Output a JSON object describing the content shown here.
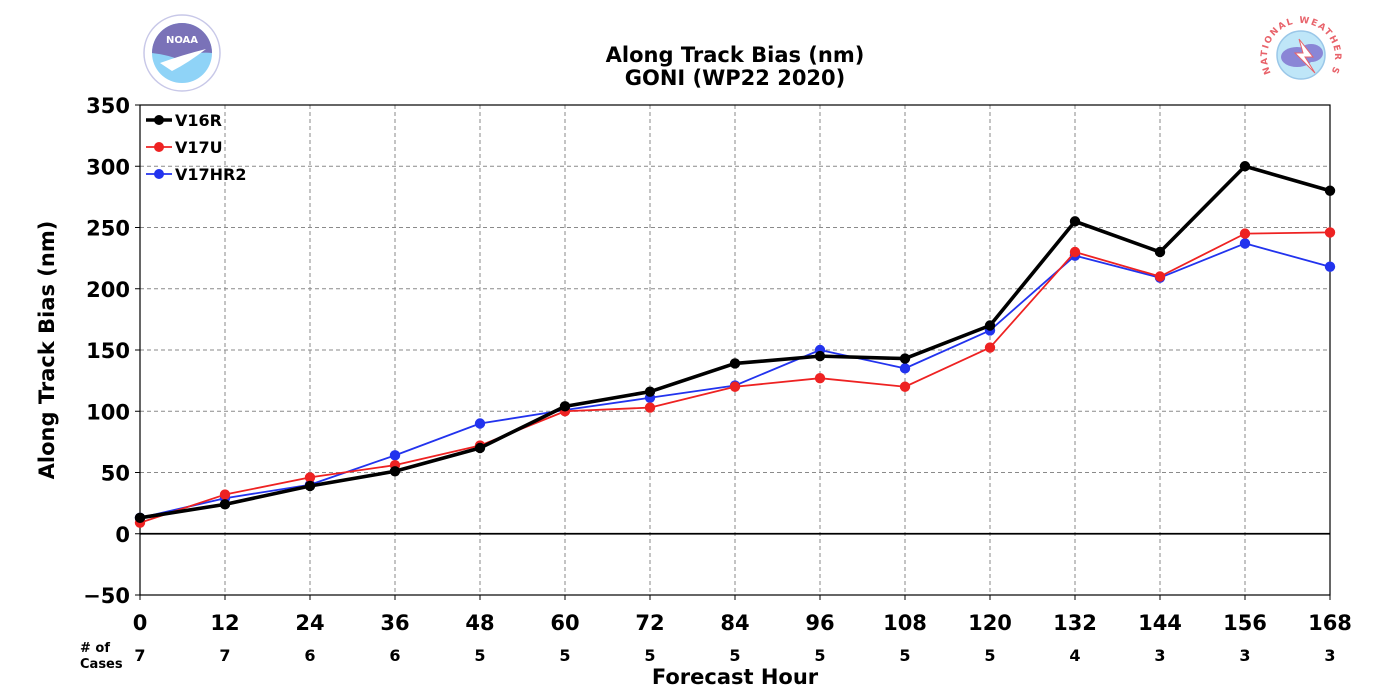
{
  "chart_data": {
    "type": "line",
    "title": "Along Track Bias (nm)",
    "subtitle": "GONI (WP22 2020)",
    "xlabel": "Forecast Hour",
    "ylabel": "Along Track Bias (nm)",
    "x": [
      0,
      12,
      24,
      36,
      48,
      60,
      72,
      84,
      96,
      108,
      120,
      132,
      144,
      156,
      168
    ],
    "xlim": [
      0,
      168
    ],
    "ylim": [
      -50,
      350
    ],
    "yticks": [
      -50,
      0,
      50,
      100,
      150,
      200,
      250,
      300,
      350
    ],
    "ytick_labels": [
      "−50",
      "0",
      "50",
      "100",
      "150",
      "200",
      "250",
      "300",
      "350"
    ],
    "grid": true,
    "legend_position": "top-left",
    "series": [
      {
        "name": "V16R",
        "color": "#000000",
        "values": [
          13,
          24,
          39,
          51,
          70,
          104,
          116,
          139,
          145,
          143,
          170,
          255,
          230,
          300,
          280
        ]
      },
      {
        "name": "V17U",
        "color": "#ee2222",
        "values": [
          9,
          32,
          46,
          56,
          72,
          100,
          103,
          120,
          127,
          120,
          152,
          230,
          210,
          245,
          246
        ]
      },
      {
        "name": "V17HR2",
        "color": "#2233ee",
        "values": [
          13,
          29,
          40,
          64,
          90,
          101,
          111,
          121,
          150,
          135,
          166,
          227,
          209,
          237,
          218
        ]
      }
    ],
    "cases_label": "# of\nCases",
    "cases": [
      7,
      7,
      6,
      6,
      5,
      5,
      5,
      5,
      5,
      5,
      5,
      4,
      3,
      3,
      3
    ]
  },
  "logos": {
    "left": {
      "icon": "noaa-logo-icon",
      "text": "NOAA",
      "colors": [
        "#1a5fb4",
        "#8fd3f7",
        "#6a5fa8"
      ]
    },
    "right": {
      "icon": "nws-logo-icon",
      "text": "NATIONAL WEATHER SERVICE",
      "colors": [
        "#e8636b",
        "#7e7ed6",
        "#bfe6f8"
      ]
    }
  }
}
